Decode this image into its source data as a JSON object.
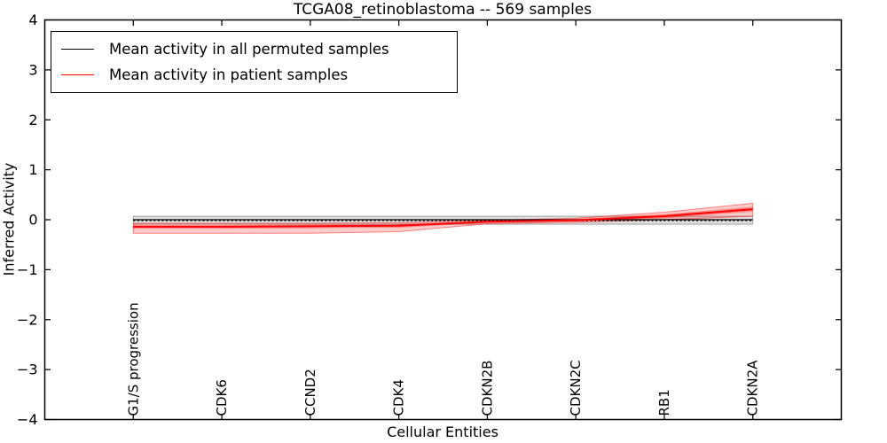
{
  "chart_data": {
    "type": "line",
    "title": "TCGA08_retinoblastoma -- 569 samples",
    "xlabel": "Cellular Entities",
    "ylabel": "Inferred Activity",
    "categories": [
      "G1/S progression",
      "CDK6",
      "CCND2",
      "CDK4",
      "CDKN2B",
      "CDKN2C",
      "RB1",
      "CDKN2A"
    ],
    "ylim": [
      -4,
      4
    ],
    "ytick_values": [
      -4,
      -3,
      -2,
      -1,
      0,
      1,
      2,
      3,
      4
    ],
    "ytick_labels": [
      "−4",
      "−3",
      "−2",
      "−1",
      "0",
      "1",
      "2",
      "3",
      "4"
    ],
    "grid": false,
    "axes_frame": true,
    "tick_direction": "in",
    "legend": {
      "position": "upper left",
      "entries": [
        {
          "label": "Mean activity in all permuted samples",
          "color": "#000000"
        },
        {
          "label": "Mean activity in patient samples",
          "color": "#ff0000"
        }
      ]
    },
    "series": [
      {
        "id": "permuted-band",
        "role": "band",
        "color": "#000000",
        "fill_opacity": 0.13,
        "edge_opacity": 0.3,
        "upper": [
          0.07,
          0.07,
          0.07,
          0.07,
          0.07,
          0.07,
          0.07,
          0.07
        ],
        "lower": [
          -0.09,
          -0.09,
          -0.09,
          -0.09,
          -0.09,
          -0.09,
          -0.09,
          -0.09
        ]
      },
      {
        "id": "patient-outer-band",
        "role": "band",
        "color": "#ff0000",
        "fill_opacity": 0.2,
        "edge_opacity": 0.45,
        "upper": [
          -0.07,
          -0.07,
          -0.07,
          -0.06,
          -0.01,
          0.03,
          0.15,
          0.33
        ],
        "lower": [
          -0.27,
          -0.27,
          -0.27,
          -0.24,
          -0.08,
          -0.05,
          0.0,
          0.07
        ]
      },
      {
        "id": "patient-inner-band",
        "role": "band",
        "color": "#ff0000",
        "fill_opacity": 0.33,
        "edge_opacity": 0,
        "upper": [
          -0.11,
          -0.11,
          -0.1,
          -0.09,
          -0.03,
          0.01,
          0.11,
          0.26
        ],
        "lower": [
          -0.18,
          -0.18,
          -0.17,
          -0.16,
          -0.06,
          -0.03,
          0.03,
          0.16
        ]
      },
      {
        "id": "permuted-mean",
        "role": "line",
        "style": "solid",
        "color": "#000000",
        "width": 1.3,
        "values": [
          0,
          0,
          0,
          0,
          0,
          0,
          0,
          0
        ]
      },
      {
        "id": "permuted-reference-dotted",
        "role": "line",
        "style": "dotted",
        "color": "#000000",
        "width": 2,
        "values": [
          -0.01,
          -0.01,
          -0.01,
          -0.01,
          -0.01,
          -0.01,
          -0.01,
          -0.01
        ]
      },
      {
        "id": "patient-mean",
        "role": "line",
        "style": "solid",
        "color": "#ff0000",
        "width": 2,
        "values": [
          -0.14,
          -0.14,
          -0.13,
          -0.12,
          -0.04,
          -0.01,
          0.07,
          0.21
        ]
      }
    ]
  }
}
